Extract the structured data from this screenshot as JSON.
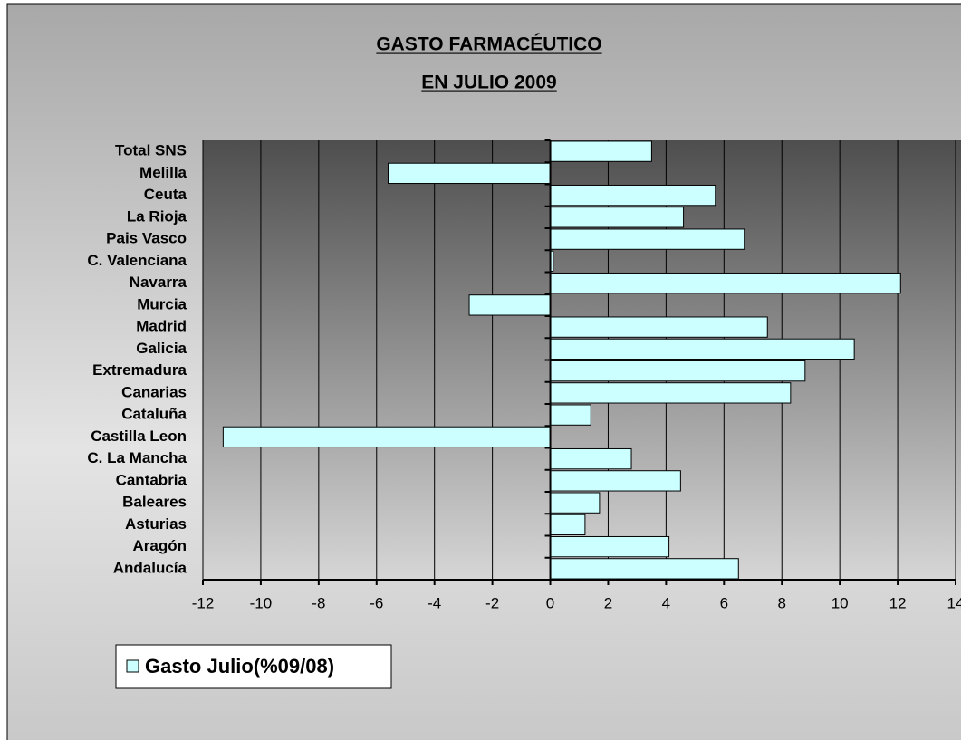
{
  "chart_data": {
    "type": "barh",
    "title": [
      "GASTO FARMACÉUTICO",
      "EN JULIO 2009"
    ],
    "categories": [
      "Total SNS",
      "Melilla",
      "Ceuta",
      "La Rioja",
      "Pais Vasco",
      "C. Valenciana",
      "Navarra",
      "Murcia",
      "Madrid",
      "Galicia",
      "Extremadura",
      "Canarias",
      "Cataluña",
      "Castilla Leon",
      "C. La Mancha",
      "Cantabria",
      "Baleares",
      "Asturias",
      "Aragón",
      "Andalucía"
    ],
    "series": [
      {
        "name": "Gasto Julio(%09/08)",
        "color": "#ccffff",
        "values": [
          3.5,
          -5.6,
          5.7,
          4.6,
          6.7,
          0.1,
          12.1,
          -2.8,
          7.5,
          10.5,
          8.8,
          8.3,
          1.4,
          -11.3,
          2.8,
          4.5,
          1.7,
          1.2,
          4.1,
          6.5
        ]
      }
    ],
    "xlim": [
      -12,
      14
    ],
    "xticks": [
      -12,
      -10,
      -8,
      -6,
      -4,
      -2,
      0,
      2,
      4,
      6,
      8,
      10,
      12,
      14
    ],
    "grid": true,
    "legend": "bottom-left"
  }
}
